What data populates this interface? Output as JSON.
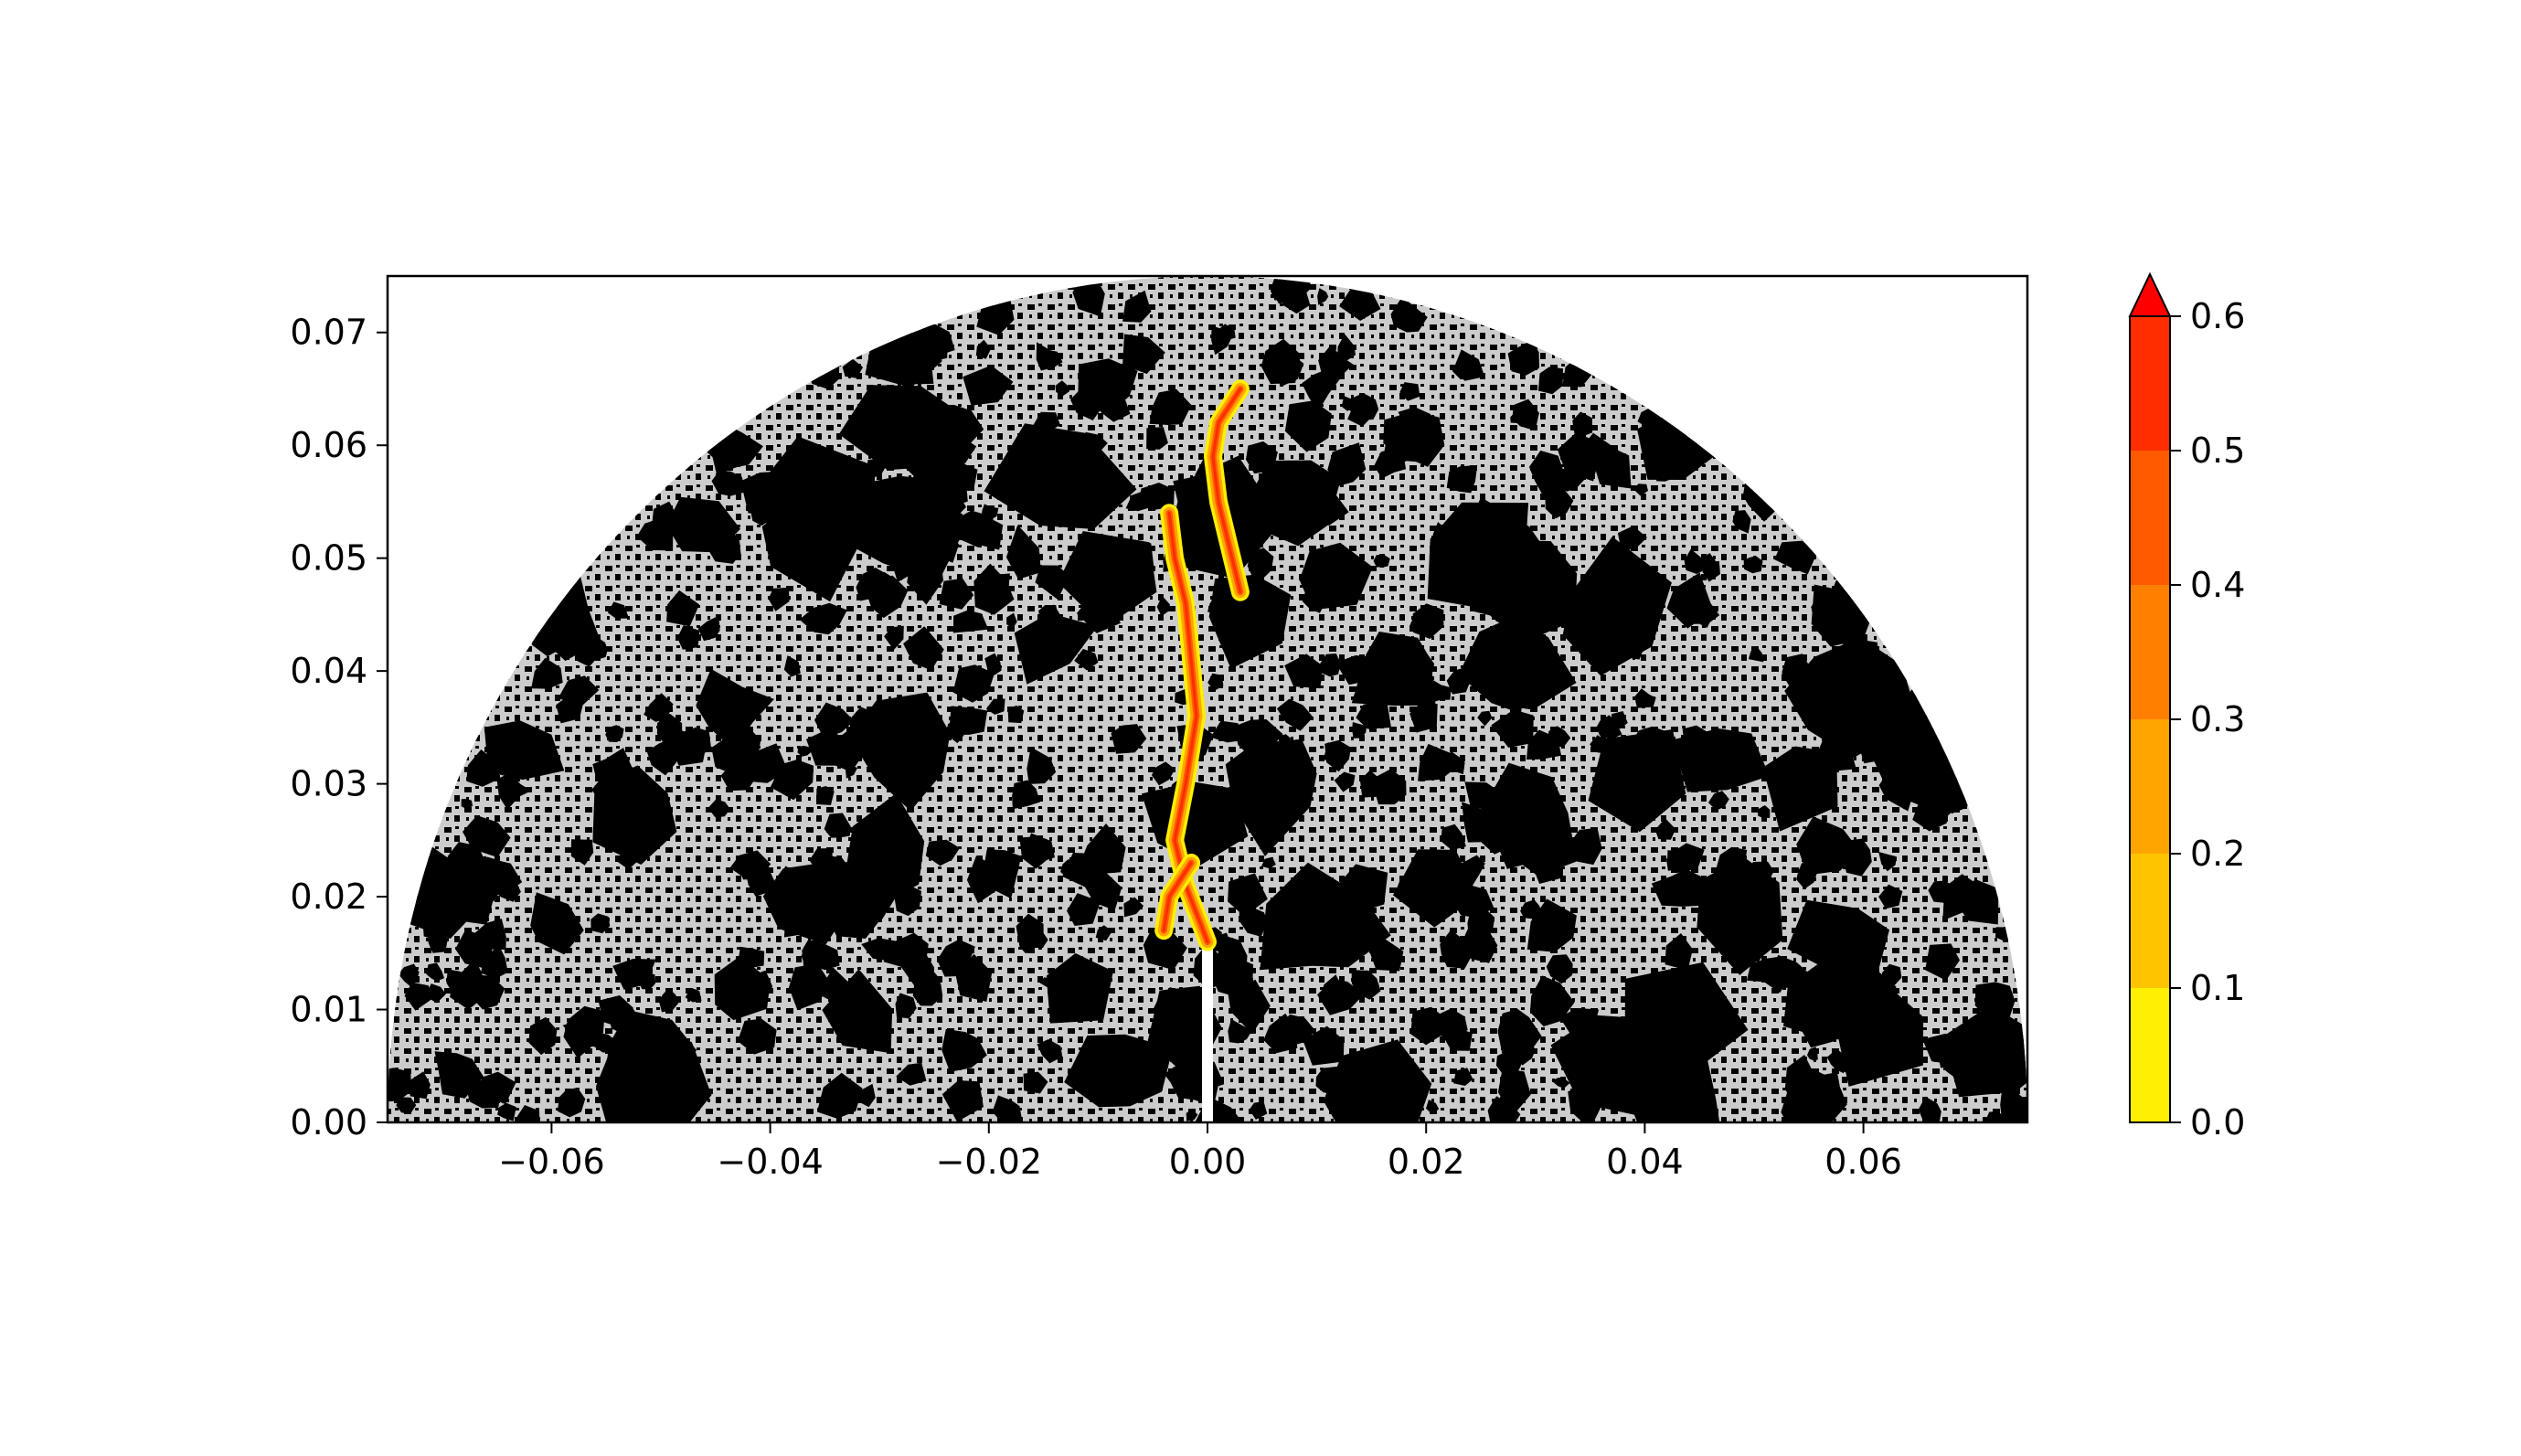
{
  "chart_data": {
    "type": "heatmap",
    "title": "",
    "xlabel": "",
    "ylabel": "",
    "xlim": [
      -0.075,
      0.075
    ],
    "ylim": [
      0.0,
      0.075
    ],
    "x_ticks": [
      -0.06,
      -0.04,
      -0.02,
      0.0,
      0.02,
      0.04,
      0.06
    ],
    "x_tick_labels": [
      "−0.06",
      "−0.04",
      "−0.02",
      "0.00",
      "0.02",
      "0.04",
      "0.06"
    ],
    "y_ticks": [
      0.0,
      0.01,
      0.02,
      0.03,
      0.04,
      0.05,
      0.06,
      0.07
    ],
    "y_tick_labels": [
      "0.00",
      "0.01",
      "0.02",
      "0.03",
      "0.04",
      "0.05",
      "0.06",
      "0.07"
    ],
    "domain": {
      "shape": "half-disk",
      "radius": 0.075,
      "center": [
        0.0,
        0.0
      ]
    },
    "notch": {
      "x": 0.0,
      "y_from": 0.0,
      "y_to": 0.016
    },
    "material_colors": {
      "matrix": "#cccccc",
      "aggregate": "#000000",
      "notch": "#ffffff"
    },
    "crack_paths": [
      {
        "name": "main",
        "points": [
          [
            0.0,
            0.016
          ],
          [
            -0.002,
            0.021
          ],
          [
            -0.003,
            0.025
          ],
          [
            -0.002,
            0.03
          ],
          [
            -0.001,
            0.036
          ],
          [
            -0.0015,
            0.041
          ],
          [
            -0.002,
            0.046
          ],
          [
            -0.003,
            0.05
          ],
          [
            -0.0035,
            0.054
          ]
        ]
      },
      {
        "name": "left-branch",
        "points": [
          [
            -0.0015,
            0.023
          ],
          [
            -0.0035,
            0.02
          ],
          [
            -0.004,
            0.017
          ]
        ]
      },
      {
        "name": "upper",
        "points": [
          [
            0.003,
            0.047
          ],
          [
            0.002,
            0.051
          ],
          [
            0.001,
            0.055
          ],
          [
            0.0005,
            0.059
          ],
          [
            0.001,
            0.062
          ],
          [
            0.003,
            0.065
          ]
        ]
      }
    ],
    "colorbar": {
      "levels": [
        0.0,
        0.1,
        0.2,
        0.3,
        0.4,
        0.5,
        0.6
      ],
      "tick_labels": [
        "0.0",
        "0.1",
        "0.2",
        "0.3",
        "0.4",
        "0.5",
        "0.6"
      ],
      "colors": [
        "#ffef00",
        "#ffc400",
        "#ffa500",
        "#ff8000",
        "#ff5a00",
        "#ff2d00"
      ],
      "extend_color": "#ff0000",
      "extend": "max"
    }
  }
}
